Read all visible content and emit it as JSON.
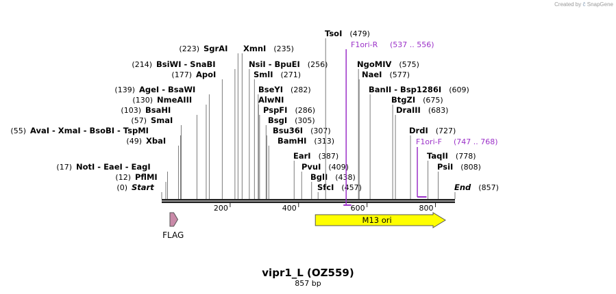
{
  "credit": {
    "prefix": "Created by",
    "brand": "SnapGene"
  },
  "title": "vipr1_L (OZ559)",
  "subtitle": "857 bp",
  "colors": {
    "primer": "#9b30c8",
    "feature_ori": "#ffff00",
    "feature_flag": "#c98aa8",
    "line": "#222222"
  },
  "sequence_length": 857,
  "ticks": [
    200,
    400,
    600,
    800
  ],
  "sites": [
    {
      "name": "Start",
      "pos": "(0)",
      "bp": 0,
      "italic": true
    },
    {
      "name": "PflMI",
      "pos": "(12)",
      "bp": 12
    },
    {
      "name": "NotI  -  EaeI  -  EagI",
      "pos": "(17)",
      "bp": 17
    },
    {
      "name": "XbaI",
      "pos": "(49)",
      "bp": 49
    },
    {
      "name": "AvaI  -  XmaI  -  BsoBI  -  TspMI",
      "pos": "(55)",
      "bp": 55
    },
    {
      "name": "SmaI",
      "pos": "(57)",
      "bp": 57
    },
    {
      "name": "BsaHI",
      "pos": "(103)",
      "bp": 103
    },
    {
      "name": "NmeAIII",
      "pos": "(130)",
      "bp": 130
    },
    {
      "name": "AgeI  -  BsaWI",
      "pos": "(139)",
      "bp": 139
    },
    {
      "name": "ApoI",
      "pos": "(177)",
      "bp": 177
    },
    {
      "name": "BsiWI  -  SnaBI",
      "pos": "(214)",
      "bp": 214
    },
    {
      "name": "SgrAI",
      "pos": "(223)",
      "bp": 223
    },
    {
      "name": "XmnI",
      "pos": "(235)",
      "bp": 235
    },
    {
      "name": "NsiI  -  BpuEI",
      "pos": "(256)",
      "bp": 256
    },
    {
      "name": "SmlI",
      "pos": "(271)",
      "bp": 271
    },
    {
      "name": "BseYI",
      "pos": "(282)",
      "bp": 282
    },
    {
      "name": "AlwNI",
      "pos": "",
      "bp": 283
    },
    {
      "name": "PspFI",
      "pos": "(286)",
      "bp": 286
    },
    {
      "name": "BsgI",
      "pos": "(305)",
      "bp": 305
    },
    {
      "name": "Bsu36I",
      "pos": "(307)",
      "bp": 307
    },
    {
      "name": "BamHI",
      "pos": "(313)",
      "bp": 313
    },
    {
      "name": "EarI",
      "pos": "(387)",
      "bp": 387
    },
    {
      "name": "PvuI",
      "pos": "(409)",
      "bp": 409
    },
    {
      "name": "BglI",
      "pos": "(438)",
      "bp": 438
    },
    {
      "name": "SfcI",
      "pos": "(457)",
      "bp": 457
    },
    {
      "name": "TsoI",
      "pos": "(479)",
      "bp": 479
    },
    {
      "name": "NgoMIV",
      "pos": "(575)",
      "bp": 575
    },
    {
      "name": "NaeI",
      "pos": "(577)",
      "bp": 577
    },
    {
      "name": "BanII  -  Bsp1286I",
      "pos": "(609)",
      "bp": 609
    },
    {
      "name": "BtgZI",
      "pos": "(675)",
      "bp": 675
    },
    {
      "name": "DraIII",
      "pos": "(683)",
      "bp": 683
    },
    {
      "name": "DrdI",
      "pos": "(727)",
      "bp": 727
    },
    {
      "name": "TaqII",
      "pos": "(778)",
      "bp": 778
    },
    {
      "name": "PsiI",
      "pos": "(808)",
      "bp": 808
    },
    {
      "name": "End",
      "pos": "(857)",
      "bp": 857,
      "italic": true
    }
  ],
  "primers": [
    {
      "name": "F1ori-R",
      "range": "(537 .. 556)",
      "start": 537,
      "end": 556,
      "strand": "reverse"
    },
    {
      "name": "F1ori-F",
      "range": "(747 .. 768)",
      "start": 747,
      "end": 768,
      "strand": "forward"
    }
  ],
  "features": [
    {
      "name": "FLAG",
      "start": 24,
      "end": 47,
      "color": "#c98aa8",
      "label_position": "below"
    },
    {
      "name": "M13 ori",
      "start": 449,
      "end": 829,
      "color": "#ffff00",
      "label_position": "inside"
    }
  ]
}
